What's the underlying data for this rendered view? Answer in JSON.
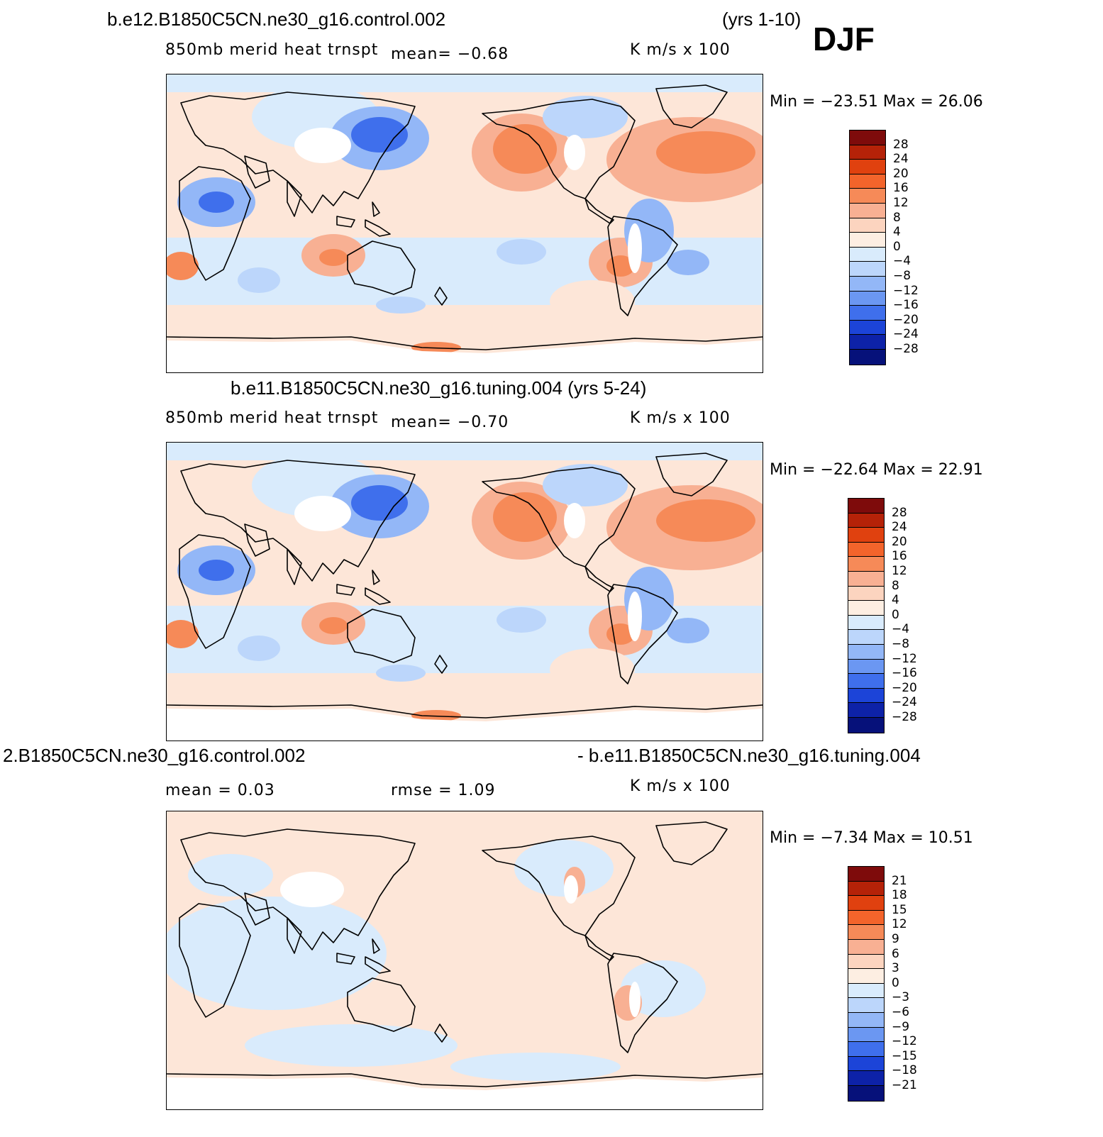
{
  "season": "DJF",
  "panels": [
    {
      "title_left": "b.e12.B1850C5CN.ne30_g16.control.002",
      "title_right": "(yrs 1-10)",
      "sublabel_left": "850mb merid heat trnspt",
      "stat_left": "mean=   −0.68",
      "stat_mid": "",
      "units": "K m/s x 100",
      "minmax": "Min =  −23.51  Max =   26.06",
      "kind": "full"
    },
    {
      "title_left": "b.e11.B1850C5CN.ne30_g16.tuning.004 (yrs 5-24)",
      "title_right": "",
      "sublabel_left": "850mb merid heat trnspt",
      "stat_left": "mean=   −0.70",
      "stat_mid": "",
      "units": "K m/s x 100",
      "minmax": "Min =  −22.64  Max =   22.91",
      "kind": "full"
    },
    {
      "title_left": "2.B1850C5CN.ne30_g16.control.002",
      "title_right": "- b.e11.B1850C5CN.ne30_g16.tuning.004",
      "sublabel_left": "mean =    0.03",
      "stat_left": "",
      "stat_mid": "rmse =    1.09",
      "units": "K m/s x 100",
      "minmax": "Min =   −7.34  Max =   10.51",
      "kind": "diff"
    }
  ],
  "colorbars": [
    {
      "labels": [
        "28",
        "24",
        "20",
        "16",
        "12",
        "8",
        "4",
        "0",
        "−4",
        "−8",
        "−12",
        "−16",
        "−20",
        "−24",
        "−28"
      ]
    },
    {
      "labels": [
        "28",
        "24",
        "20",
        "16",
        "12",
        "8",
        "4",
        "0",
        "−4",
        "−8",
        "−12",
        "−16",
        "−20",
        "−24",
        "−28"
      ]
    },
    {
      "labels": [
        "21",
        "18",
        "15",
        "12",
        "9",
        "6",
        "3",
        "0",
        "−3",
        "−6",
        "−9",
        "−12",
        "−15",
        "−18",
        "−21"
      ]
    }
  ],
  "palette": [
    "#7e0b0b",
    "#b52208",
    "#e0410f",
    "#f3642b",
    "#f68a58",
    "#f8b093",
    "#fcd4bf",
    "#fdeee2",
    "#d9ebfc",
    "#bcd6fb",
    "#93b7f7",
    "#6b97f2",
    "#3f6fec",
    "#1c44d8",
    "#0d22a8",
    "#06117a"
  ],
  "chart_data": {
    "type": "heatmap",
    "title": "850mb merid heat trnspt",
    "units": "K m/s x 100",
    "season": "DJF",
    "maps": [
      {
        "case": "b.e12.B1850C5CN.ne30_g16.control.002",
        "years": "yrs 1-10",
        "mean": -0.68,
        "min": -23.51,
        "max": 26.06,
        "levels": [
          -28,
          -24,
          -20,
          -16,
          -12,
          -8,
          -4,
          0,
          4,
          8,
          12,
          16,
          20,
          24,
          28
        ]
      },
      {
        "case": "b.e11.B1850C5CN.ne30_g16.tuning.004",
        "years": "yrs 5-24",
        "mean": -0.7,
        "min": -22.64,
        "max": 22.91,
        "levels": [
          -28,
          -24,
          -20,
          -16,
          -12,
          -8,
          -4,
          0,
          4,
          8,
          12,
          16,
          20,
          24,
          28
        ]
      },
      {
        "case": "difference",
        "mean": 0.03,
        "rmse": 1.09,
        "min": -7.34,
        "max": 10.51,
        "levels": [
          -21,
          -18,
          -15,
          -12,
          -9,
          -6,
          -3,
          0,
          3,
          6,
          9,
          12,
          15,
          18,
          21
        ]
      }
    ]
  }
}
